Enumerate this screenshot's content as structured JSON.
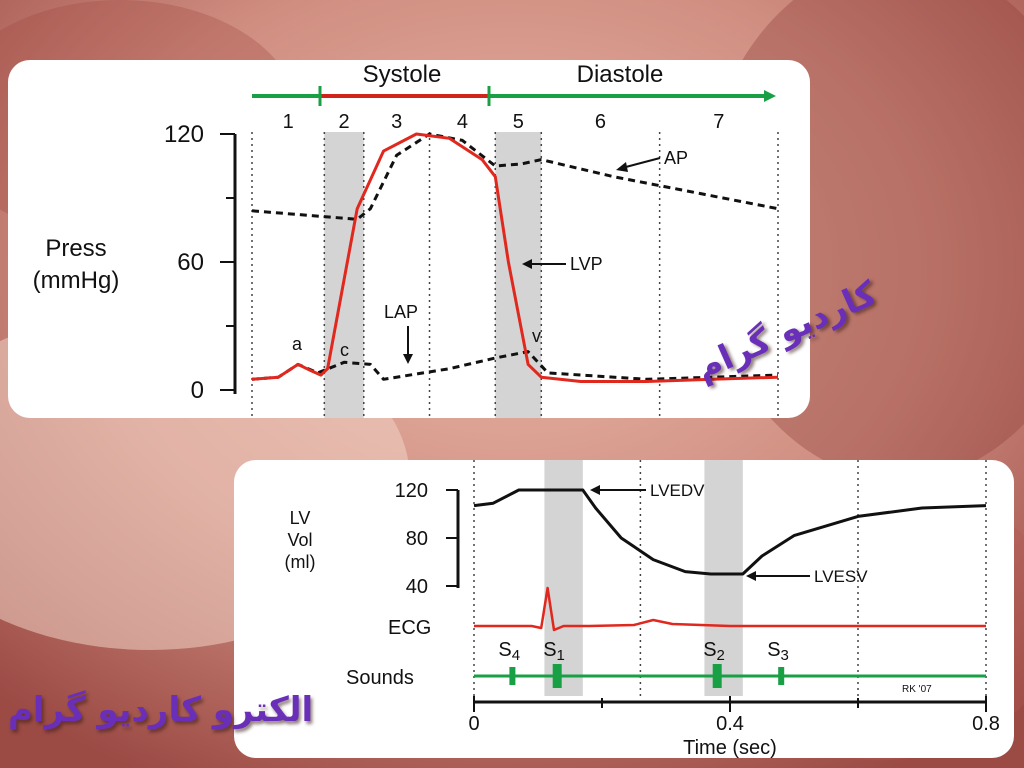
{
  "background_colors": {
    "base": "#d9a092",
    "dark": "#8a3a35",
    "light": "#f2d6c8"
  },
  "overlay_text": {
    "cardiogram": "کاردیو گرام",
    "electrocardiogram": "الکترو کاردیو گرام"
  },
  "chart_data": [
    {
      "type": "line",
      "title": "",
      "phase_bar": {
        "systole_label": "Systole",
        "diastole_label": "Diastole"
      },
      "phases": [
        "1",
        "2",
        "3",
        "4",
        "5",
        "6",
        "7"
      ],
      "ylabel": "Press\n(mmHg)",
      "ylabel_lines": [
        "Press",
        "(mmHg)"
      ],
      "yticks": [
        "120",
        "60",
        "0"
      ],
      "ylim": [
        0,
        120
      ],
      "xlim": [
        0,
        0.8
      ],
      "colors": {
        "lvp": "#e0281e",
        "dashed": "#111111",
        "systole": "#d0241a",
        "diastole": "#19a044",
        "shade": "#d4d4d4"
      },
      "annotations": {
        "ap": "AP",
        "lvp": "LVP",
        "lap": "LAP",
        "a": "a",
        "c": "c",
        "v": "v"
      },
      "series": [
        {
          "name": "LVP",
          "x": [
            0,
            0.04,
            0.07,
            0.09,
            0.105,
            0.115,
            0.16,
            0.2,
            0.25,
            0.3,
            0.35,
            0.37,
            0.39,
            0.42,
            0.44,
            0.5,
            0.6,
            0.7,
            0.8
          ],
          "y": [
            5,
            6,
            12,
            9,
            7,
            10,
            85,
            112,
            120,
            118,
            108,
            100,
            60,
            12,
            6,
            4,
            4,
            5,
            6
          ]
        },
        {
          "name": "AP",
          "x": [
            0,
            0.16,
            0.18,
            0.22,
            0.27,
            0.32,
            0.37,
            0.41,
            0.44,
            0.55,
            0.65,
            0.8
          ],
          "y": [
            84,
            80,
            85,
            110,
            120,
            117,
            105,
            106,
            108,
            100,
            94,
            85
          ]
        },
        {
          "name": "LAP",
          "x": [
            0,
            0.04,
            0.07,
            0.1,
            0.14,
            0.18,
            0.2,
            0.3,
            0.37,
            0.42,
            0.45,
            0.6,
            0.8
          ],
          "y": [
            5,
            6,
            12,
            8,
            13,
            12,
            5,
            10,
            15,
            18,
            8,
            5,
            7
          ]
        }
      ],
      "shaded": [
        [
          0.11,
          0.17
        ],
        [
          0.37,
          0.44
        ]
      ],
      "vlines": [
        0,
        0.11,
        0.17,
        0.27,
        0.37,
        0.44,
        0.62,
        0.8
      ]
    },
    {
      "type": "line",
      "title": "",
      "xlabel": "Time (sec)",
      "xticks": [
        "0",
        "0.4",
        "0.8"
      ],
      "ylabel_lines": [
        "LV",
        "Vol",
        "(ml)"
      ],
      "yticks": [
        "120",
        "80",
        "40"
      ],
      "ylim": [
        40,
        120
      ],
      "xlim": [
        0,
        0.8
      ],
      "ecg_label": "ECG",
      "sounds_label": "Sounds",
      "annotations": {
        "lvedv": "LVEDV",
        "lvesv": "LVESV"
      },
      "signature": "RK '07",
      "colors": {
        "volume": "#111111",
        "ecg": "#e0281e",
        "sounds": "#19a044",
        "shade": "#d4d4d4"
      },
      "series": [
        {
          "name": "LV Vol",
          "x": [
            0,
            0.03,
            0.07,
            0.1,
            0.17,
            0.19,
            0.23,
            0.28,
            0.33,
            0.37,
            0.42,
            0.45,
            0.5,
            0.6,
            0.7,
            0.8
          ],
          "y": [
            107,
            109,
            120,
            120,
            120,
            105,
            80,
            62,
            52,
            50,
            50,
            65,
            82,
            98,
            105,
            107
          ]
        }
      ],
      "ecg": {
        "x": [
          0,
          0.09,
          0.105,
          0.115,
          0.125,
          0.14,
          0.18,
          0.25,
          0.28,
          0.31,
          0.4,
          0.8
        ],
        "y": [
          0,
          0,
          -2,
          38,
          -4,
          0,
          0,
          1,
          6,
          2,
          0,
          0
        ]
      },
      "heart_sounds": [
        {
          "name": "S4",
          "sub": "4",
          "x": 0.06
        },
        {
          "name": "S1",
          "sub": "1",
          "x": 0.13
        },
        {
          "name": "S2",
          "sub": "2",
          "x": 0.38
        },
        {
          "name": "S3",
          "sub": "3",
          "x": 0.48
        }
      ],
      "shaded": [
        [
          0.11,
          0.17
        ],
        [
          0.36,
          0.42
        ]
      ],
      "vlines": [
        0,
        0.26,
        0.6,
        0.8
      ]
    }
  ]
}
